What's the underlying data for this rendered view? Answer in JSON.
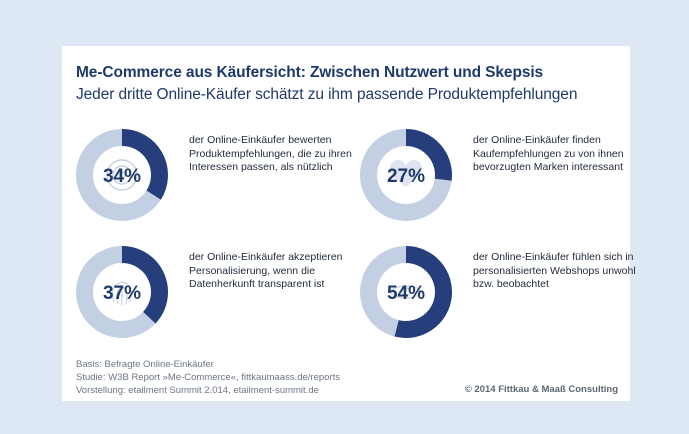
{
  "title": "Me-Commerce aus Käufersicht: Zwischen Nutzwert und Skepsis",
  "subtitle": "Jeder dritte Online-Käufer schätzt zu ihm passende Produktempfehlungen",
  "chart_data": {
    "type": "pie",
    "title": "Me-Commerce aus Käufersicht: Zwischen Nutzwert und Skepsis",
    "subtitle": "Jeder dritte Online-Käufer schätzt zu ihm passende Produktempfehlungen",
    "colors": {
      "value": "#263f7c",
      "rest": "#c3cfe3",
      "text": "#1f3a6a"
    },
    "items": [
      {
        "value": 34,
        "label": "34%",
        "icon": "target-icon",
        "description": "der Online-Einkäufer bewerten Produktempfehlungen, die zu ihren Interessen passen, als nützlich"
      },
      {
        "value": 27,
        "label": "27%",
        "icon": "heart-icon",
        "description": "der Online-Einkäufer finden Kaufempfehlungen zu von ihnen bevorzugten Marken interessant"
      },
      {
        "value": 37,
        "label": "37%",
        "icon": "fingerprint-icon",
        "description": "der Online-Einkäufer akzeptieren Personalisierung, wenn die Datenherkunft transparent ist"
      },
      {
        "value": 54,
        "label": "54%",
        "icon": "eye-icon",
        "description": "der Online-Einkäufer fühlen sich in personalisierten Webshops unwohl bzw. beobachtet"
      }
    ]
  },
  "footer": {
    "basis": "Basis: Befragte Online-Einkäufer",
    "studie": "Studie: W3B Report »Me-Commerce«, fittkaumaass.de/reports",
    "vorstellung": "Vorstellung: etailment Summit 2.014, etailment-summit.de"
  },
  "copyright": "© 2014 Fittkau & Maaß Consulting"
}
